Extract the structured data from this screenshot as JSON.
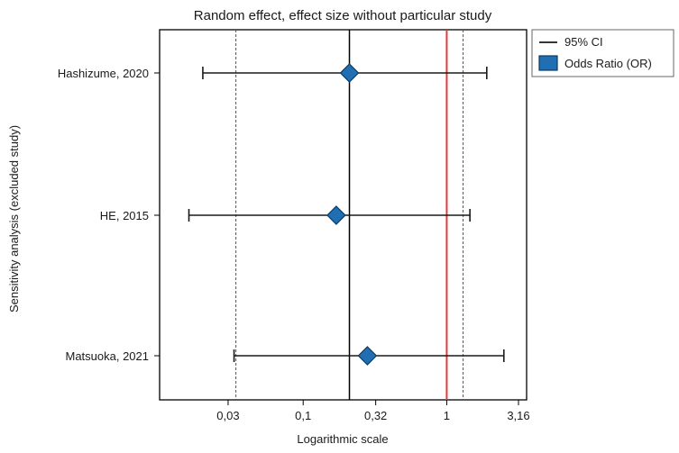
{
  "chart_data": {
    "type": "forest",
    "title": "Random effect, effect size without particular study",
    "xlabel": "Logarithmic scale",
    "ylabel": "Sensitivity analysis (excluded study)",
    "x_scale": "log",
    "xlim": [
      0.01,
      3.6
    ],
    "x_ticks": [
      0.03,
      0.1,
      0.32,
      1,
      3.16
    ],
    "x_tick_labels": [
      "0,03",
      "0,1",
      "0,32",
      "1",
      "3,16"
    ],
    "reference_line": 1,
    "pooled_estimate_line": 0.21,
    "dashed_lines": [
      0.034,
      1.3
    ],
    "studies": [
      {
        "label": "Hashizume, 2020",
        "or": 0.21,
        "ci_low": 0.02,
        "ci_high": 1.9
      },
      {
        "label": "HE, 2015",
        "or": 0.17,
        "ci_low": 0.016,
        "ci_high": 1.45
      },
      {
        "label": "Matsuoka, 2021",
        "or": 0.28,
        "ci_low": 0.033,
        "ci_high": 2.5
      }
    ],
    "legend": {
      "position": "top-right",
      "items": [
        {
          "label": "95% CI",
          "symbol": "line"
        },
        {
          "label": "Odds Ratio (OR)",
          "symbol": "diamond"
        }
      ]
    },
    "colors": {
      "marker": "#1f6fb2",
      "marker_border": "#0b3a66",
      "reference_line": "#e83a3a",
      "axis": "#000000"
    }
  }
}
